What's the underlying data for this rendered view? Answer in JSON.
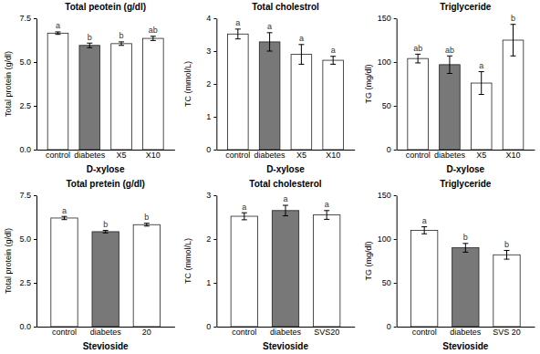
{
  "chart_data": [
    {
      "type": "bar",
      "title": "Total peotein (g/dl)",
      "ylabel": "Total protein (g/dl)",
      "xlabel": "D-xylose",
      "categories": [
        "control",
        "diabetes",
        "X5",
        "X10"
      ],
      "values": [
        6.65,
        5.95,
        6.05,
        6.35
      ],
      "errors": [
        0.07,
        0.13,
        0.1,
        0.12
      ],
      "annotations": [
        "a",
        "b",
        "b",
        "ab"
      ],
      "colors": [
        "#ffffff",
        "#787878",
        "#ffffff",
        "#ffffff"
      ],
      "ylim": [
        0,
        7.5
      ],
      "yticks": [
        {
          "value": 0,
          "label": "0.0"
        },
        2.5,
        {
          "value": 5,
          "label": "5.0"
        },
        7.5
      ]
    },
    {
      "type": "bar",
      "title": "Total cholestrol",
      "ylabel": "TC (mmol/L)",
      "xlabel": "D-xylose",
      "categories": [
        "control",
        "diabetes",
        "X5",
        "X10"
      ],
      "values": [
        3.52,
        3.28,
        2.9,
        2.72
      ],
      "errors": [
        0.15,
        0.28,
        0.3,
        0.12
      ],
      "annotations": [
        "a",
        "a",
        "a",
        "a"
      ],
      "colors": [
        "#ffffff",
        "#787878",
        "#ffffff",
        "#ffffff"
      ],
      "ylim": [
        0,
        4
      ],
      "yticks": [
        0,
        1,
        2,
        3,
        4
      ]
    },
    {
      "type": "bar",
      "title": "Triglyceride",
      "ylabel": "TG (mg/dl)",
      "xlabel": "D-xylose",
      "categories": [
        "control",
        "diabetes",
        "X5",
        "X10"
      ],
      "values": [
        104,
        97,
        76,
        125
      ],
      "errors": [
        5,
        10,
        13,
        18
      ],
      "annotations": [
        "ab",
        "ab",
        "a",
        "b"
      ],
      "colors": [
        "#ffffff",
        "#787878",
        "#ffffff",
        "#ffffff"
      ],
      "ylim": [
        0,
        150
      ],
      "yticks": [
        0,
        50,
        100,
        150
      ]
    },
    {
      "type": "bar",
      "title": "Total pretein (g/dl)",
      "ylabel": "Total protein (g/dl)",
      "xlabel": "Stevioside",
      "categories": [
        "control",
        "diabetes",
        "20"
      ],
      "values": [
        6.2,
        5.42,
        5.82
      ],
      "errors": [
        0.09,
        0.07,
        0.08
      ],
      "annotations": [
        "a",
        "b",
        "b"
      ],
      "colors": [
        "#ffffff",
        "#787878",
        "#ffffff"
      ],
      "ylim": [
        0,
        7.5
      ],
      "yticks": [
        {
          "value": 0,
          "label": "0.0"
        },
        2.5,
        {
          "value": 5,
          "label": "5.0"
        },
        7.5
      ]
    },
    {
      "type": "bar",
      "title": "Total cholesterol",
      "ylabel": "TC (mmol/L)",
      "xlabel": "Stevioside",
      "categories": [
        "control",
        "diabetes",
        "SVS20"
      ],
      "values": [
        2.52,
        2.65,
        2.55
      ],
      "errors": [
        0.08,
        0.12,
        0.1
      ],
      "annotations": [
        "a",
        "a",
        "a"
      ],
      "colors": [
        "#ffffff",
        "#787878",
        "#ffffff"
      ],
      "ylim": [
        0,
        3
      ],
      "yticks": [
        0,
        1,
        2,
        3
      ]
    },
    {
      "type": "bar",
      "title": "Triglyceride",
      "ylabel": "TG (mg/dl)",
      "xlabel": "Stevioside",
      "categories": [
        "control",
        "diabetes",
        "SVS 20"
      ],
      "values": [
        110,
        90,
        82
      ],
      "errors": [
        4,
        5,
        5
      ],
      "annotations": [
        "a",
        "b",
        "b"
      ],
      "colors": [
        "#ffffff",
        "#787878",
        "#ffffff"
      ],
      "ylim": [
        0,
        150
      ],
      "yticks": [
        0,
        50,
        100,
        150
      ]
    }
  ]
}
